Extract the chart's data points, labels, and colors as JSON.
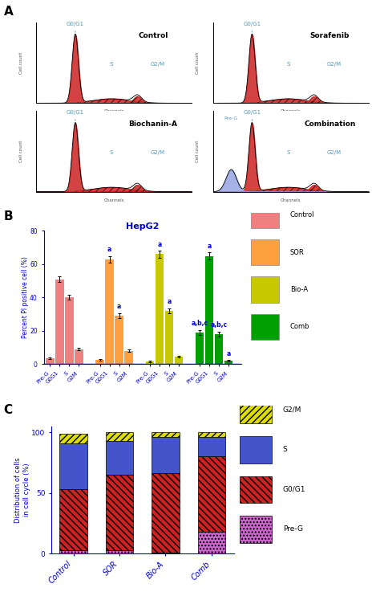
{
  "panel_A_titles": [
    "Control",
    "Sorafenib",
    "Biochanin-A",
    "Combination"
  ],
  "panel_B_title": "HepG2",
  "panel_B_groups": [
    "Control",
    "SOR",
    "Bio-A",
    "Comb"
  ],
  "panel_B_phases": [
    "Pre-G",
    "G0G1",
    "S",
    "G2M"
  ],
  "panel_B_phase_display": [
    "Pre-G",
    "G0G1",
    "S",
    "G2M"
  ],
  "panel_B_values": {
    "Control": [
      3.5,
      51,
      40,
      9
    ],
    "SOR": [
      2.5,
      63,
      29,
      8
    ],
    "Bio-A": [
      1.5,
      66,
      32,
      4.5
    ],
    "Comb": [
      19,
      65,
      18,
      2
    ]
  },
  "panel_B_errors": {
    "Control": [
      0.5,
      1.5,
      1.5,
      0.8
    ],
    "SOR": [
      0.5,
      2,
      1.5,
      0.8
    ],
    "Bio-A": [
      0.5,
      2,
      1.5,
      0.5
    ],
    "Comb": [
      1.5,
      2,
      1.5,
      0.3
    ]
  },
  "panel_B_colors": {
    "Control": "#F08080",
    "SOR": "#FFA040",
    "Bio-A": "#C8C800",
    "Comb": "#00A000"
  },
  "panel_B_sig": [
    [
      1,
      1,
      "a"
    ],
    [
      1,
      2,
      "a"
    ],
    [
      2,
      1,
      "a"
    ],
    [
      2,
      2,
      "a"
    ],
    [
      3,
      0,
      "a,b,c"
    ],
    [
      3,
      1,
      "a"
    ],
    [
      3,
      2,
      "a,b,c"
    ],
    [
      3,
      3,
      "a"
    ]
  ],
  "panel_B_ylabel": "Percent PI positive cell (%)",
  "panel_B_ylim": [
    0,
    80
  ],
  "panel_B_yticks": [
    0,
    20,
    40,
    60,
    80
  ],
  "legend_B_labels": [
    "Control",
    "SOR",
    "Bio-A",
    "Comb"
  ],
  "legend_B_colors": [
    "#F08080",
    "#FFA040",
    "#C8C800",
    "#00A000"
  ],
  "panel_C_categories": [
    "Control",
    "SOR",
    "Bio-A",
    "Comb"
  ],
  "panel_C_PreG": [
    3,
    3,
    1,
    18
  ],
  "panel_C_G0G1": [
    50,
    62,
    65,
    62
  ],
  "panel_C_S": [
    38,
    28,
    30,
    16
  ],
  "panel_C_G2M": [
    8,
    7,
    4,
    4
  ],
  "panel_C_ylabel": "Distribution of cells\nin cell cycle (%)",
  "legend_C_labels": [
    "G2/M",
    "S",
    "G0/G1",
    "Pre-G"
  ],
  "legend_C_colors": [
    "#DDDD00",
    "#4455CC",
    "#CC2222",
    "#CC66CC"
  ],
  "legend_C_hatches": [
    "////",
    "",
    "\\\\\\\\",
    "...."
  ],
  "axis_color": "#0000CC",
  "sig_color": "#0000CC",
  "annotation_color": "#5599BB"
}
